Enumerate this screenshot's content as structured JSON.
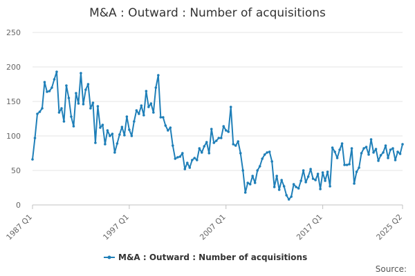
{
  "chart_data": {
    "type": "line",
    "title": "M&A : Outward : Number of acquisitions",
    "xlabel": "",
    "ylabel": "",
    "ylim": [
      0,
      250
    ],
    "yticks": [
      0,
      50,
      100,
      150,
      200,
      250
    ],
    "x_tick_labels": [
      "1987 Q1",
      "1997 Q1",
      "2007 Q1",
      "2017 Q1",
      "2025 Q2"
    ],
    "x_tick_index": [
      0,
      40,
      80,
      120,
      153
    ],
    "grid": true,
    "legend_position": "bottom-center",
    "series": [
      {
        "name": "M&A : Outward : Number of acquisitions",
        "color": "#1f7fb8",
        "values": [
          66,
          97,
          132,
          135,
          140,
          178,
          164,
          165,
          170,
          182,
          193,
          134,
          140,
          121,
          173,
          155,
          128,
          114,
          162,
          147,
          191,
          146,
          167,
          175,
          140,
          148,
          90,
          143,
          112,
          116,
          88,
          108,
          100,
          103,
          76,
          89,
          102,
          113,
          101,
          128,
          109,
          100,
          121,
          137,
          132,
          144,
          130,
          165,
          142,
          147,
          134,
          170,
          188,
          127,
          127,
          115,
          108,
          112,
          86,
          67,
          69,
          70,
          75,
          52,
          61,
          54,
          65,
          68,
          65,
          82,
          76,
          85,
          91,
          75,
          110,
          90,
          93,
          97,
          97,
          114,
          108,
          106,
          142,
          88,
          86,
          92,
          75,
          50,
          18,
          32,
          30,
          42,
          32,
          50,
          56,
          67,
          73,
          76,
          77,
          63,
          26,
          42,
          22,
          36,
          27,
          14,
          8,
          12,
          30,
          26,
          24,
          35,
          50,
          33,
          41,
          52,
          38,
          36,
          45,
          23,
          47,
          35,
          48,
          27,
          83,
          77,
          68,
          80,
          89,
          58,
          58,
          59,
          82,
          31,
          48,
          54,
          75,
          82,
          84,
          73,
          95,
          76,
          81,
          64,
          72,
          76,
          86,
          68,
          80,
          82,
          65,
          77,
          74,
          88
        ]
      }
    ],
    "source_label": "Source:"
  }
}
